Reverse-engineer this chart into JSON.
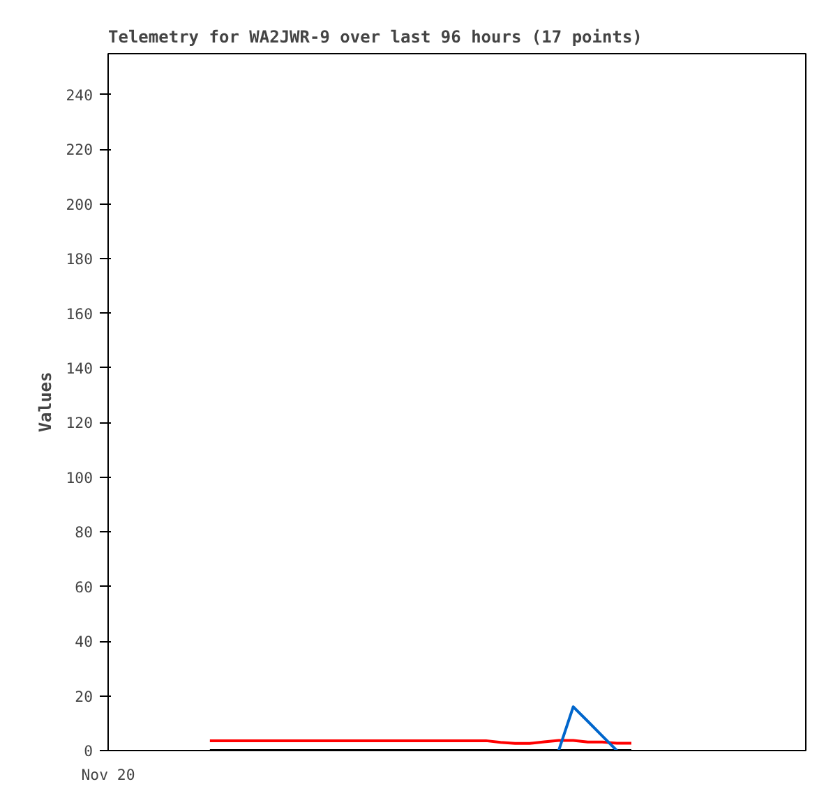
{
  "chart_data": {
    "type": "line",
    "title": "Telemetry for WA2JWR-9 over last 96 hours (17 points)",
    "ylabel": "Values",
    "categories": [
      "Nov 20",
      null,
      null,
      null,
      null,
      null,
      null,
      null,
      null,
      null,
      null,
      null,
      null,
      null,
      null,
      null,
      null,
      null,
      null,
      null,
      null,
      null,
      null,
      null,
      null,
      null,
      null,
      null,
      null,
      null,
      null,
      null,
      null,
      null,
      null,
      null,
      null,
      null,
      null,
      null,
      null,
      null,
      null,
      null,
      null,
      null,
      null,
      null,
      null
    ],
    "ylim": [
      0,
      255
    ],
    "yticks": [
      0,
      20,
      40,
      60,
      80,
      100,
      120,
      140,
      160,
      180,
      200,
      220,
      240
    ],
    "grid": false,
    "marker": "none",
    "line_style": "solid",
    "series": [
      {
        "color": "#000000",
        "values": [
          null,
          null,
          null,
          null,
          null,
          null,
          null,
          0,
          0,
          0,
          0,
          0,
          0,
          0,
          0,
          0,
          0,
          0,
          0,
          0,
          0,
          0,
          0,
          0,
          0,
          0,
          0,
          0,
          0,
          0,
          0,
          0,
          0,
          0,
          0,
          0,
          0,
          null,
          null,
          null,
          null,
          null,
          null,
          null,
          null,
          null,
          null,
          null,
          null
        ]
      },
      {
        "color": "#ff0000",
        "values": [
          null,
          null,
          null,
          null,
          null,
          null,
          null,
          3.6,
          3.6,
          3.6,
          3.6,
          3.6,
          3.6,
          3.6,
          3.6,
          3.6,
          3.6,
          3.6,
          3.6,
          3.6,
          3.6,
          3.6,
          3.6,
          3.6,
          3.6,
          3.6,
          3.6,
          3.0,
          2.6,
          2.6,
          3.2,
          3.7,
          3.7,
          3.1,
          3.1,
          2.7,
          2.7,
          null,
          null,
          null,
          null,
          null,
          null,
          null,
          null,
          null,
          null,
          null,
          null
        ]
      },
      {
        "color": "#0066cc",
        "values": [
          null,
          null,
          null,
          null,
          null,
          null,
          null,
          null,
          null,
          null,
          null,
          null,
          null,
          null,
          null,
          null,
          null,
          null,
          null,
          null,
          null,
          null,
          null,
          null,
          null,
          null,
          null,
          null,
          null,
          null,
          null,
          0,
          16,
          10.7,
          5.3,
          0,
          null,
          null,
          null,
          null,
          null,
          null,
          null,
          null,
          null,
          null,
          null,
          null,
          null
        ]
      }
    ]
  }
}
